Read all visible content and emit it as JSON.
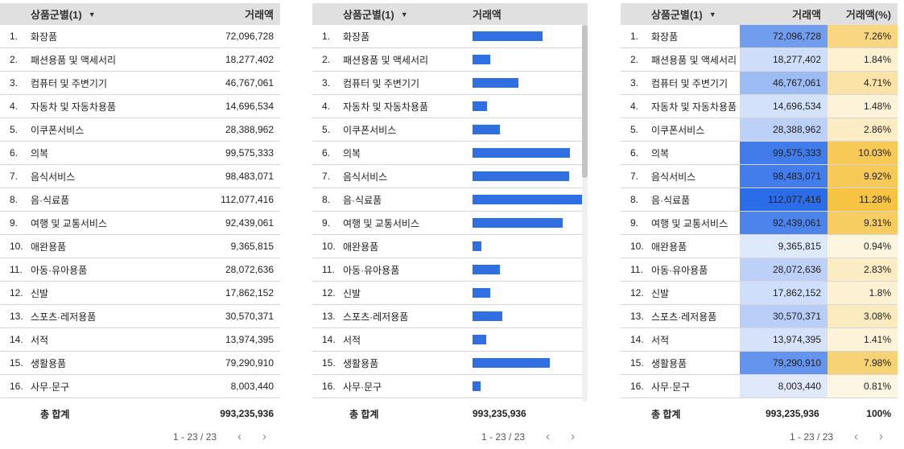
{
  "header": {
    "dim": "상품군별(1)",
    "metric": "거래액",
    "pct": "거래액(%)"
  },
  "rows": [
    {
      "n": "1.",
      "name": "화장품",
      "value": "72,096,728",
      "v": 72096728,
      "pct": "7.26%"
    },
    {
      "n": "2.",
      "name": "패션용품 및 액세서리",
      "value": "18,277,402",
      "v": 18277402,
      "pct": "1.84%"
    },
    {
      "n": "3.",
      "name": "컴퓨터 및 주변기기",
      "value": "46,767,061",
      "v": 46767061,
      "pct": "4.71%"
    },
    {
      "n": "4.",
      "name": "자동차 및 자동차용품",
      "value": "14,696,534",
      "v": 14696534,
      "pct": "1.48%"
    },
    {
      "n": "5.",
      "name": "이쿠폰서비스",
      "value": "28,388,962",
      "v": 28388962,
      "pct": "2.86%"
    },
    {
      "n": "6.",
      "name": "의복",
      "value": "99,575,333",
      "v": 99575333,
      "pct": "10.03%"
    },
    {
      "n": "7.",
      "name": "음식서비스",
      "value": "98,483,071",
      "v": 98483071,
      "pct": "9.92%"
    },
    {
      "n": "8.",
      "name": "음·식료품",
      "value": "112,077,416",
      "v": 112077416,
      "pct": "11.28%"
    },
    {
      "n": "9.",
      "name": "여행 및 교통서비스",
      "value": "92,439,061",
      "v": 92439061,
      "pct": "9.31%"
    },
    {
      "n": "10.",
      "name": "애완용품",
      "value": "9,365,815",
      "v": 9365815,
      "pct": "0.94%"
    },
    {
      "n": "11.",
      "name": "아동·유아용품",
      "value": "28,072,636",
      "v": 28072636,
      "pct": "2.83%"
    },
    {
      "n": "12.",
      "name": "신발",
      "value": "17,862,152",
      "v": 17862152,
      "pct": "1.8%"
    },
    {
      "n": "13.",
      "name": "스포츠·레저용품",
      "value": "30,570,371",
      "v": 30570371,
      "pct": "3.08%"
    },
    {
      "n": "14.",
      "name": "서적",
      "value": "13,974,395",
      "v": 13974395,
      "pct": "1.41%"
    },
    {
      "n": "15.",
      "name": "생활용품",
      "value": "79,290,910",
      "v": 79290910,
      "pct": "7.98%"
    },
    {
      "n": "16.",
      "name": "사무·문구",
      "value": "8,003,440",
      "v": 8003440,
      "pct": "0.81%"
    }
  ],
  "total": {
    "label": "총 합계",
    "value": "993,235,936",
    "pct": "100%"
  },
  "pager": {
    "range": "1 - 23 / 23",
    "prev": "‹",
    "next": "›"
  },
  "colors": {
    "bar": "#2f6fe2",
    "blue_max": "#2b6de8",
    "yellow_max": "#f6c343",
    "header_bg": "#e0e0e0"
  }
}
